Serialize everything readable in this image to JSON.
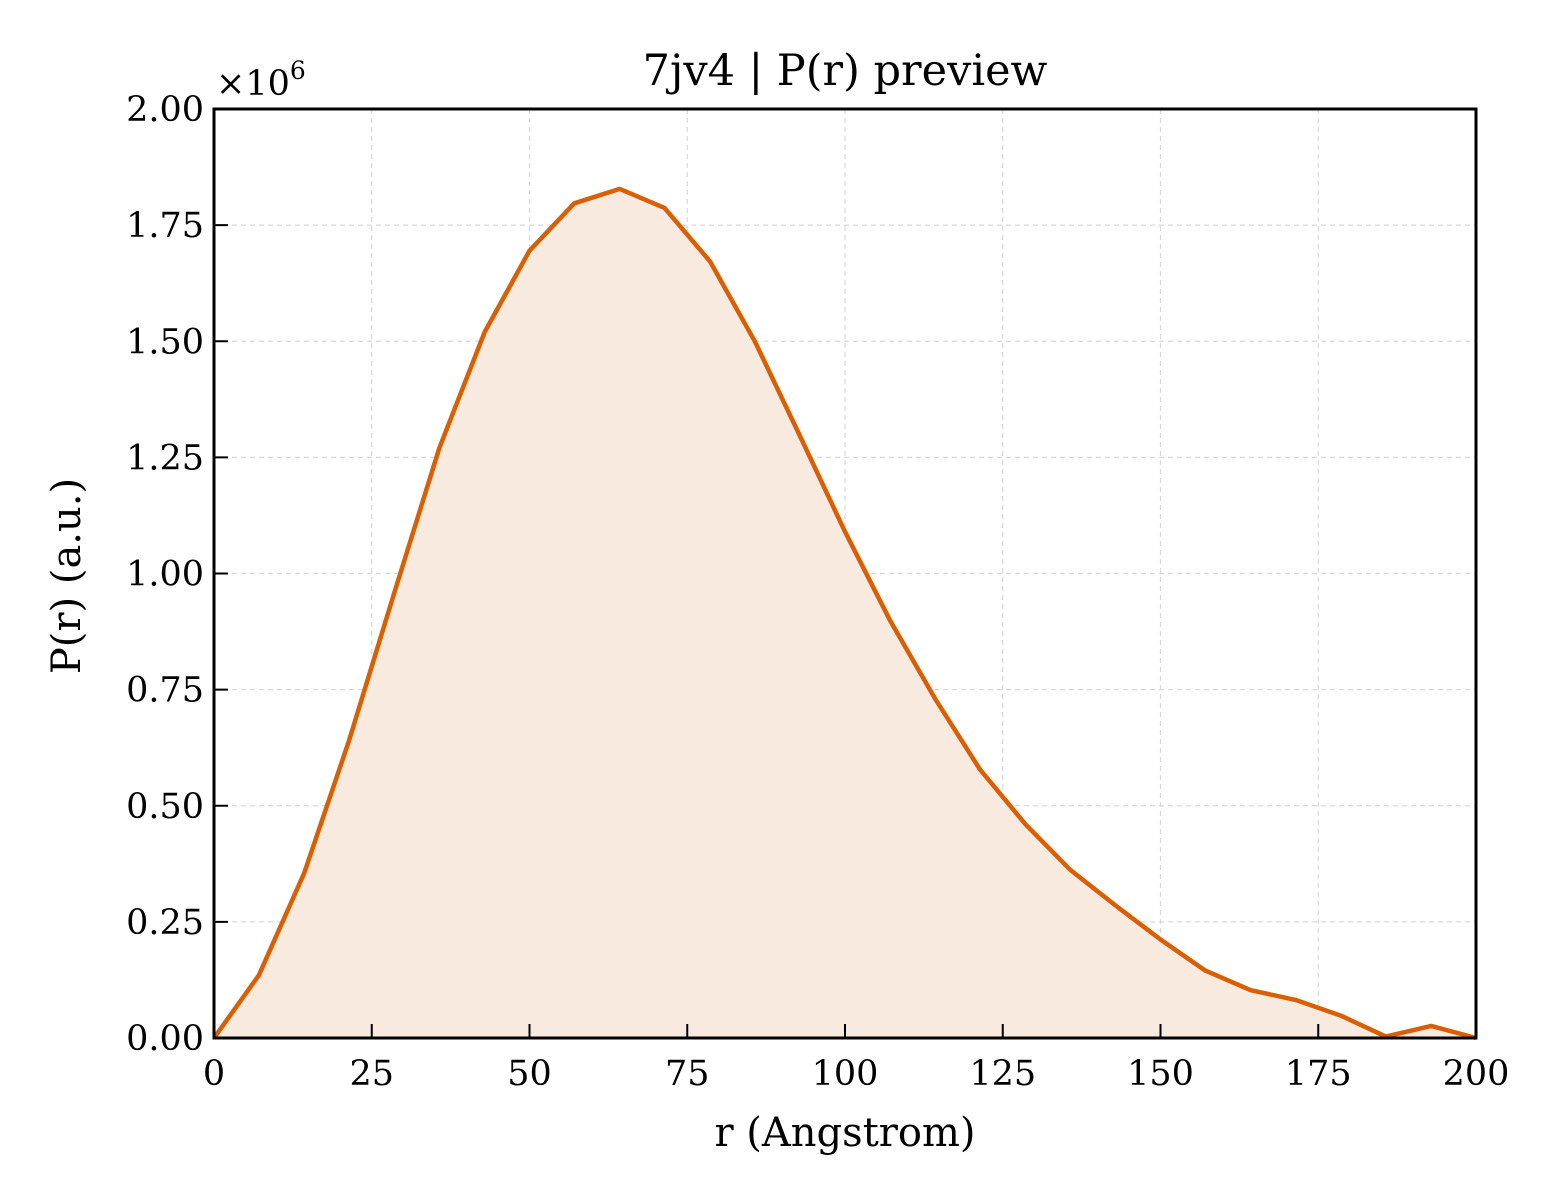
{
  "chart_data": {
    "type": "area",
    "title": "7jv4 | P(r) preview",
    "xlabel": "r (Angstrom)",
    "ylabel": "P(r) (a.u.)",
    "y_offset_label": "×10",
    "y_offset_exponent": "6",
    "xlim": [
      0,
      200
    ],
    "ylim": [
      0,
      2.0
    ],
    "y_scale_factor": 1000000,
    "grid": true,
    "line_color": "#d95f02",
    "fill_color": "#f9eadf",
    "x_ticks": [
      0,
      25,
      50,
      75,
      100,
      125,
      150,
      175,
      200
    ],
    "x_tick_labels": [
      "0",
      "25",
      "50",
      "75",
      "100",
      "125",
      "150",
      "175",
      "200"
    ],
    "y_ticks": [
      0,
      0.25,
      0.5,
      0.75,
      1.0,
      1.25,
      1.5,
      1.75,
      2.0
    ],
    "y_tick_labels": [
      "0.00",
      "0.25",
      "0.50",
      "0.75",
      "1.00",
      "1.25",
      "1.50",
      "1.75",
      "2.00"
    ],
    "series": [
      {
        "x": [
          0,
          7.1,
          14.3,
          21.4,
          28.6,
          35.7,
          42.9,
          50.0,
          57.1,
          64.3,
          71.4,
          78.6,
          85.7,
          92.9,
          100.0,
          107.1,
          114.3,
          121.4,
          128.6,
          135.7,
          142.9,
          150.0,
          157.1,
          164.3,
          171.4,
          178.6,
          185.7,
          192.9,
          200.0
        ],
        "y": [
          0.0,
          0.135,
          0.355,
          0.64,
          0.96,
          1.27,
          1.52,
          1.695,
          1.797,
          1.828,
          1.787,
          1.672,
          1.5,
          1.295,
          1.09,
          0.9,
          0.73,
          0.578,
          0.46,
          0.362,
          0.285,
          0.212,
          0.145,
          0.103,
          0.082,
          0.048,
          0.003,
          0.026,
          0.0
        ]
      }
    ]
  }
}
